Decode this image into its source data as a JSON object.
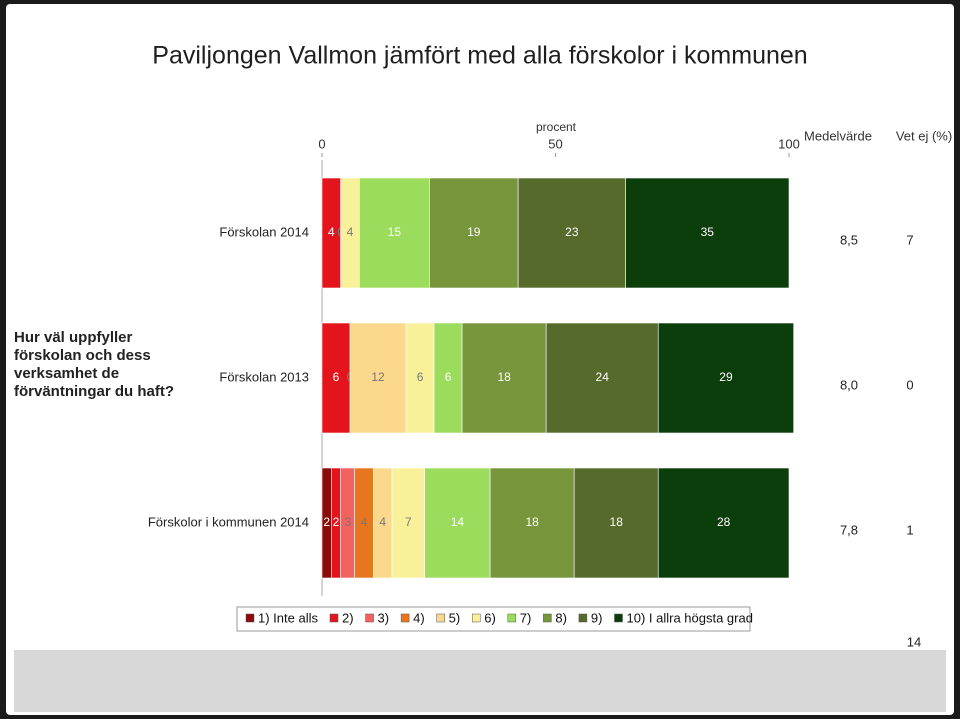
{
  "chart_data": {
    "type": "stacked-bar",
    "title": "Paviljongen Vallmon jämfört med alla förskolor i kommunen",
    "xlabel": "procent",
    "ylabel": "Hur väl uppfyller förskolan och dess verksamhet de förväntningar du haft?",
    "xlim": [
      0,
      100
    ],
    "xticks": [
      0,
      50,
      100
    ],
    "categories": [
      "Förskolan 2014",
      "Förskolan 2013",
      "Förskolor i kommunen 2014"
    ],
    "series": [
      {
        "name": "1) Inte alls",
        "color": "#8b0a0a",
        "values": [
          0,
          0,
          2
        ]
      },
      {
        "name": "2)",
        "color": "#e3141c",
        "values": [
          4,
          6,
          2
        ]
      },
      {
        "name": "3)",
        "color": "#f2625f",
        "values": [
          0,
          0,
          3
        ]
      },
      {
        "name": "4)",
        "color": "#e8761e",
        "values": [
          0,
          0,
          4
        ]
      },
      {
        "name": "5)",
        "color": "#fbd88c",
        "values": [
          0,
          12,
          4
        ]
      },
      {
        "name": "6)",
        "color": "#f9f19a",
        "values": [
          4,
          6,
          7
        ]
      },
      {
        "name": "7)",
        "color": "#9bdc5c",
        "values": [
          15,
          6,
          14
        ]
      },
      {
        "name": "8)",
        "color": "#77963b",
        "values": [
          19,
          18,
          18
        ]
      },
      {
        "name": "9)",
        "color": "#566a2c",
        "values": [
          23,
          24,
          18
        ]
      },
      {
        "name": "10) I allra högsta grad",
        "color": "#0b3e0b",
        "values": [
          35,
          29,
          28
        ]
      }
    ],
    "mean": {
      "name": "Medelvärde",
      "values": [
        8.5,
        8.0,
        7.8
      ],
      "value_labels": [
        "8,5",
        "8,0",
        "7,8"
      ]
    },
    "unknown": {
      "name": "Vet ej (%)",
      "values": [
        7,
        0,
        1
      ]
    }
  },
  "page_number": "14"
}
